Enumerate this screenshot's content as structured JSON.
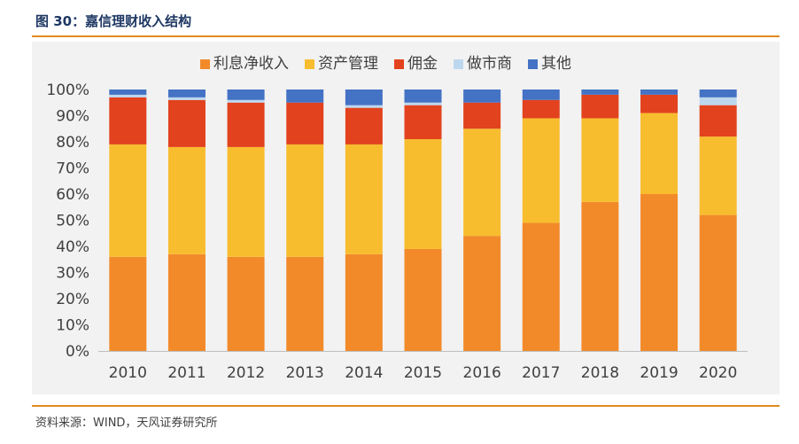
{
  "figure": {
    "title": "图 30：嘉信理财收入结构",
    "source": "资料来源：WIND，天风证券研究所"
  },
  "chart_data": {
    "type": "bar",
    "stacked": true,
    "categories": [
      "2010",
      "2011",
      "2012",
      "2013",
      "2014",
      "2015",
      "2016",
      "2017",
      "2018",
      "2019",
      "2020"
    ],
    "series": [
      {
        "name": "利息净收入",
        "color": "#f28a2a",
        "values": [
          36,
          37,
          36,
          36,
          37,
          39,
          44,
          49,
          57,
          60,
          52
        ]
      },
      {
        "name": "资产管理",
        "color": "#f8bd2e",
        "values": [
          43,
          41,
          42,
          43,
          42,
          42,
          41,
          40,
          32,
          31,
          30
        ]
      },
      {
        "name": "佣金",
        "color": "#e2421e",
        "values": [
          18,
          18,
          17,
          16,
          14,
          13,
          10,
          7,
          9,
          7,
          12
        ]
      },
      {
        "name": "做市商",
        "color": "#bdd7ee",
        "values": [
          1,
          1,
          1,
          0,
          1,
          1,
          0,
          0,
          0,
          0,
          3
        ]
      },
      {
        "name": "其他",
        "color": "#4472c4",
        "values": [
          2,
          3,
          4,
          5,
          6,
          5,
          5,
          4,
          2,
          2,
          3
        ]
      }
    ],
    "y_ticks": [
      "0%",
      "10%",
      "20%",
      "30%",
      "40%",
      "50%",
      "60%",
      "70%",
      "80%",
      "90%",
      "100%"
    ],
    "ylim": [
      0,
      100
    ],
    "grid": false,
    "legend_position": "top-center"
  }
}
